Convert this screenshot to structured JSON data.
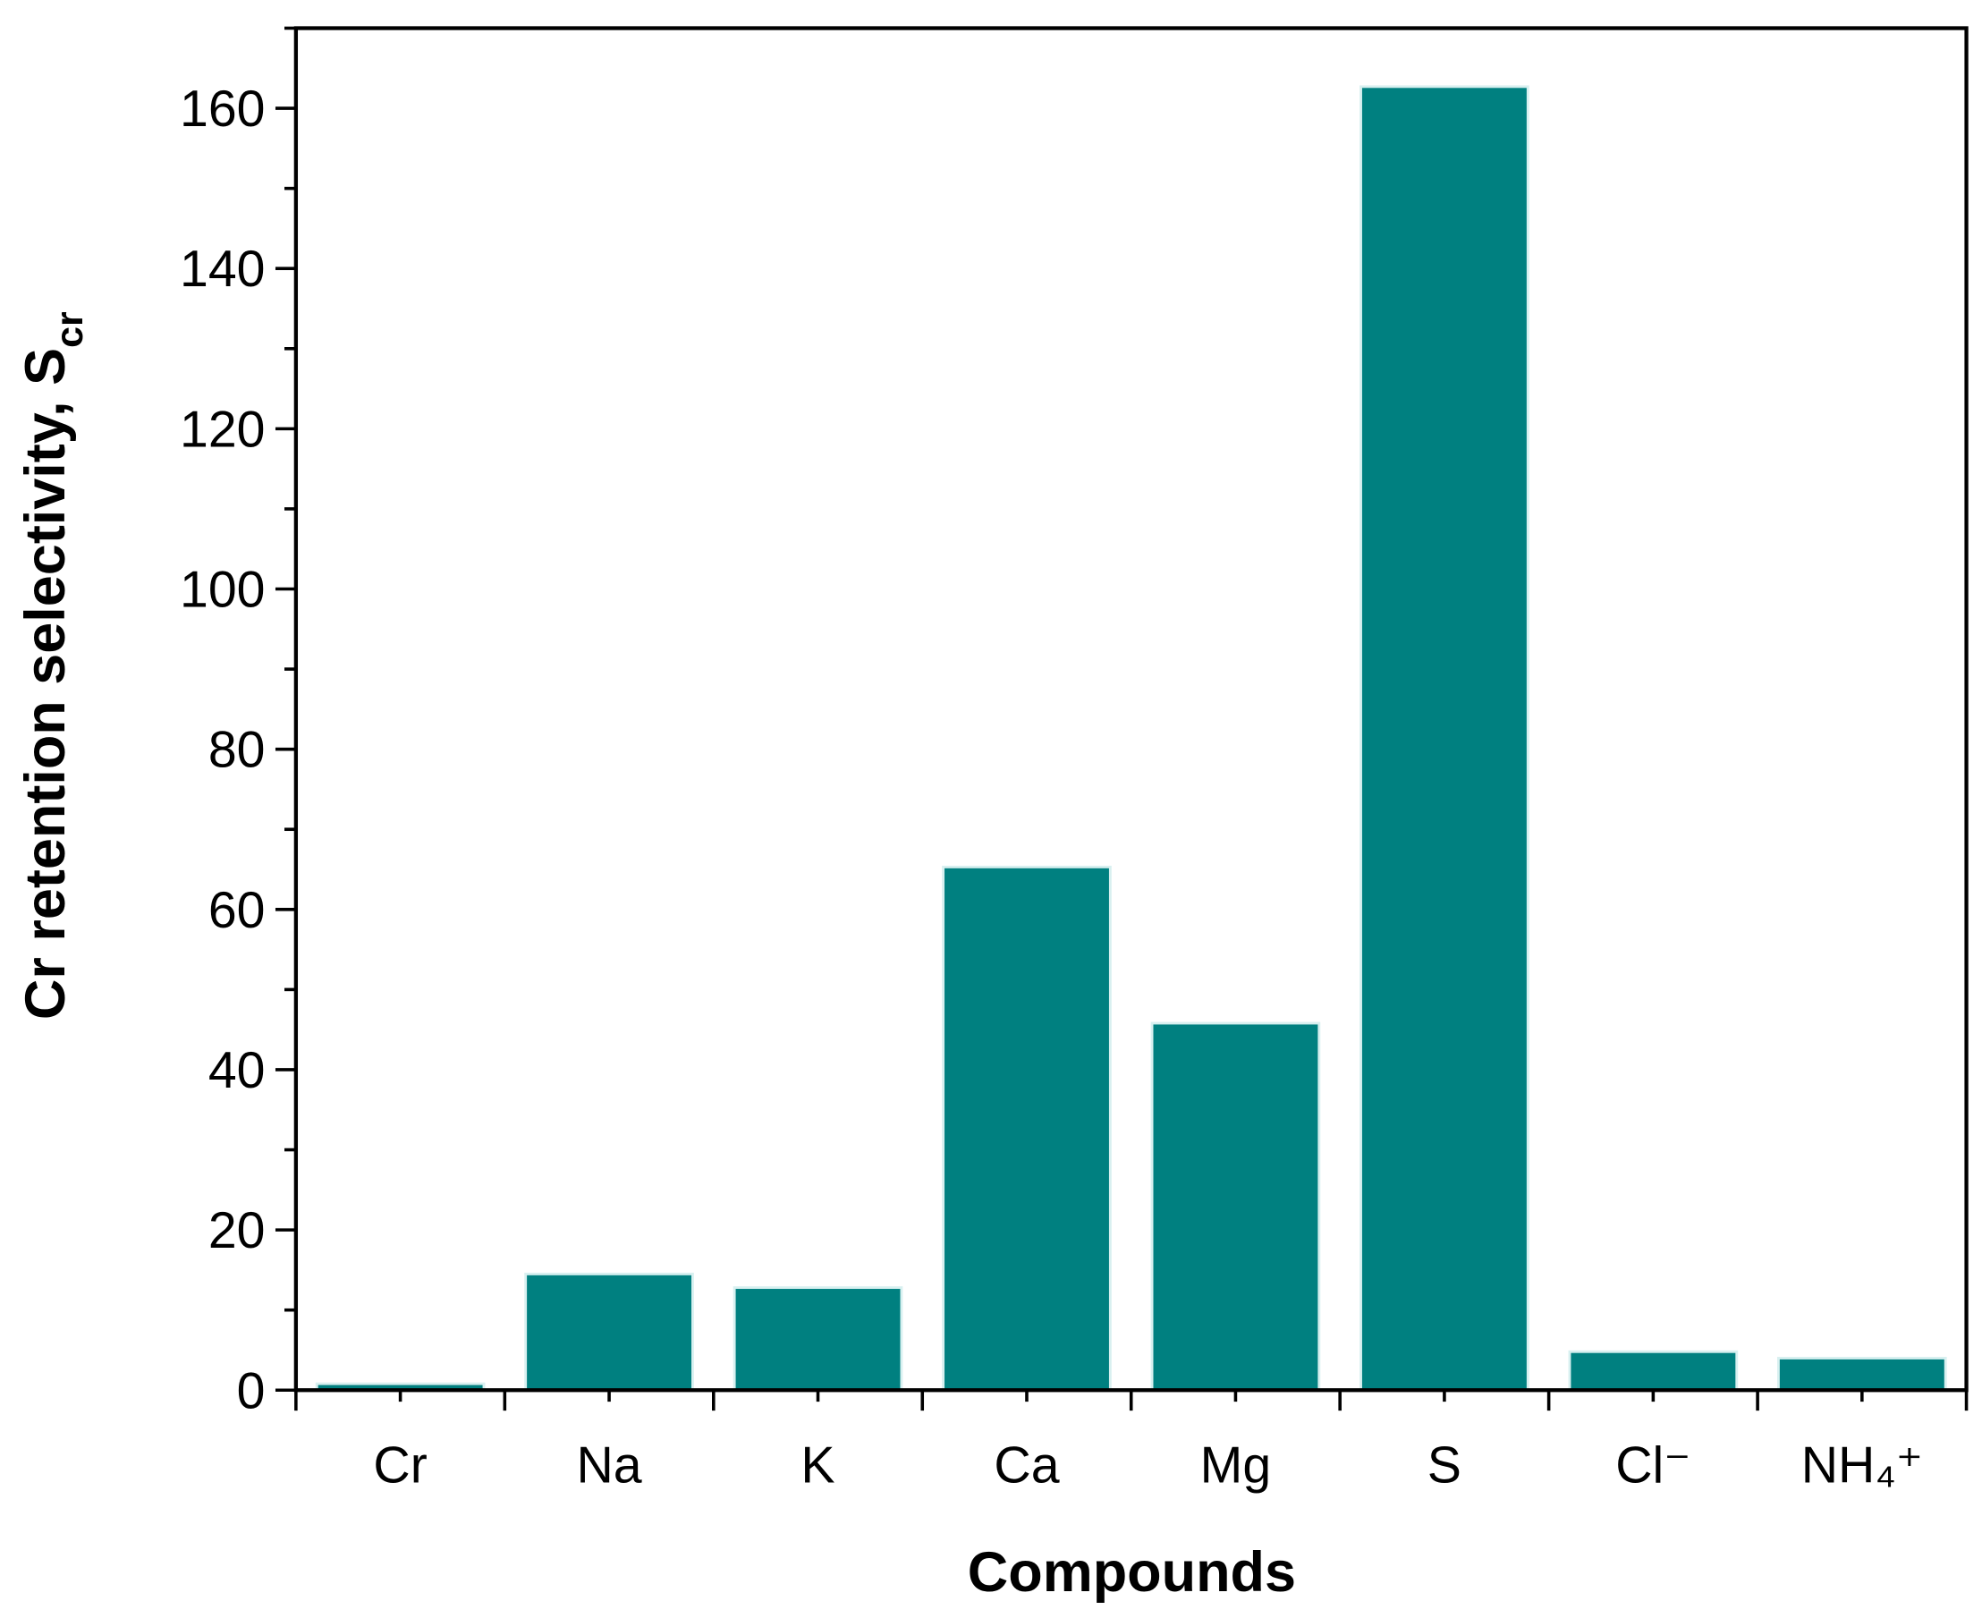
{
  "chart_data": {
    "type": "bar",
    "x_label": "Compounds",
    "y_label": "Cr retention selectivity, S",
    "y_label_sub": "cr",
    "categories": [
      "Cr",
      "Na",
      "K",
      "Ca",
      "Mg",
      "S",
      "Cl⁻",
      "NH₄⁺"
    ],
    "values": [
      0.8,
      14.5,
      12.8,
      65.3,
      45.8,
      162.7,
      4.8,
      4.0
    ],
    "color": "#008080",
    "ylim": [
      0,
      170
    ],
    "yticks": [
      0,
      20,
      40,
      60,
      80,
      100,
      120,
      140,
      160
    ]
  }
}
